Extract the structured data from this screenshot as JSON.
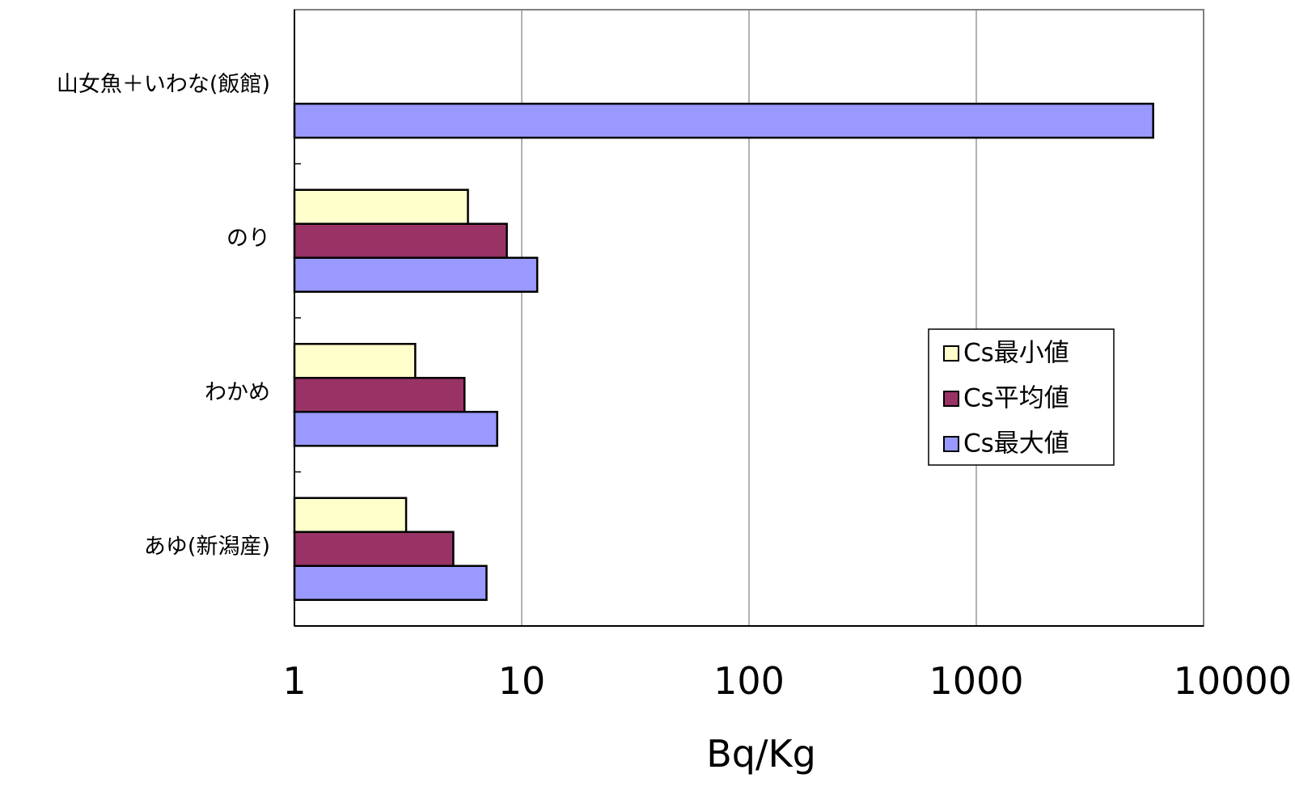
{
  "chart_data": {
    "type": "bar",
    "orientation": "horizontal",
    "x_scale": "log",
    "xlim": [
      1,
      10000
    ],
    "xlabel": "Bq/Kg",
    "ylabel": "",
    "title": "",
    "x_ticks": [
      "1",
      "10",
      "100",
      "1000",
      "10000"
    ],
    "grid": "vertical",
    "legend_position": "right",
    "categories": [
      "山女魚＋いわな(飯館)",
      "のり",
      "わかめ",
      "あゆ(新潟産)"
    ],
    "series": [
      {
        "name": "Cs最小値",
        "color": "#ffffcc",
        "values": [
          null,
          5.8,
          3.4,
          3.1
        ]
      },
      {
        "name": "Cs平均値",
        "color": "#993366",
        "values": [
          null,
          8.6,
          5.6,
          5.0
        ]
      },
      {
        "name": "Cs最大値",
        "color": "#9999ff",
        "values": [
          6000,
          11.7,
          7.8,
          7.0
        ]
      }
    ]
  }
}
